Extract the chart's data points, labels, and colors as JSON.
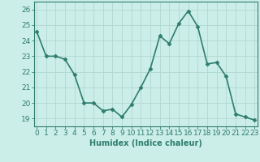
{
  "x": [
    0,
    1,
    2,
    3,
    4,
    5,
    6,
    7,
    8,
    9,
    10,
    11,
    12,
    13,
    14,
    15,
    16,
    17,
    18,
    19,
    20,
    21,
    22,
    23
  ],
  "y": [
    24.6,
    23.0,
    23.0,
    22.8,
    21.8,
    20.0,
    20.0,
    19.5,
    19.6,
    19.1,
    19.9,
    21.0,
    22.2,
    24.3,
    23.8,
    25.1,
    25.9,
    24.9,
    22.5,
    22.6,
    21.7,
    19.3,
    19.1,
    18.9
  ],
  "line_color": "#2e7d6e",
  "marker": "D",
  "marker_size": 2.5,
  "bg_color": "#cceee8",
  "grid_color": "#b0d8d0",
  "title": "",
  "xlabel": "Humidex (Indice chaleur)",
  "ylabel": "",
  "ylim": [
    18.5,
    26.5
  ],
  "yticks": [
    19,
    20,
    21,
    22,
    23,
    24,
    25,
    26
  ],
  "xticks": [
    0,
    1,
    2,
    3,
    4,
    5,
    6,
    7,
    8,
    9,
    10,
    11,
    12,
    13,
    14,
    15,
    16,
    17,
    18,
    19,
    20,
    21,
    22,
    23
  ],
  "xlabel_fontsize": 7,
  "tick_fontsize": 6.5,
  "axis_color": "#2e7d6e",
  "tick_color": "#2e7d6e",
  "line_width": 1.2,
  "xlim": [
    -0.3,
    23.3
  ]
}
